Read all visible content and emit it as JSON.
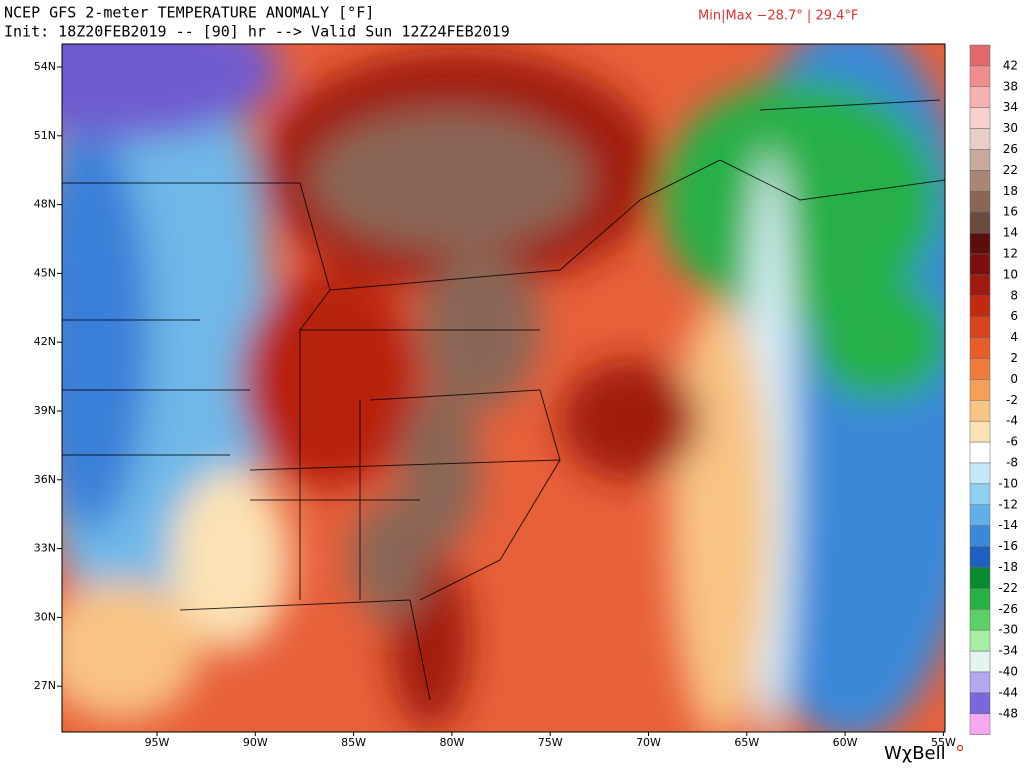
{
  "header": {
    "title": "NCEP GFS 2-meter TEMPERATURE ANOMALY [°F]",
    "subtitle": "Init: 18Z20FEB2019 -- [90] hr --> Valid Sun 12Z24FEB2019",
    "minmax": "Min|Max −28.7° | 29.4°F"
  },
  "map": {
    "lat_labels": [
      "54N",
      "51N",
      "48N",
      "45N",
      "42N",
      "39N",
      "36N",
      "33N",
      "30N",
      "27N"
    ],
    "lon_labels": [
      "95W",
      "90W",
      "85W",
      "80W",
      "75W",
      "70W",
      "65W",
      "60W",
      "55W"
    ]
  },
  "colorbar": {
    "labels": [
      "42",
      "38",
      "34",
      "30",
      "26",
      "22",
      "18",
      "16",
      "14",
      "12",
      "10",
      "8",
      "6",
      "4",
      "2",
      "0",
      "-2",
      "-4",
      "-6",
      "-8",
      "-10",
      "-12",
      "-14",
      "-16",
      "-18",
      "-22",
      "-26",
      "-30",
      "-34",
      "-40",
      "-44",
      "-48"
    ],
    "colors": [
      "#e06a6a",
      "#f08e8e",
      "#f5b2b0",
      "#f8d2cc",
      "#e6d0c6",
      "#c8aa9c",
      "#a88676",
      "#8a6656",
      "#6a4a3e",
      "#5a0e0e",
      "#7c0e0e",
      "#a01a10",
      "#c02a12",
      "#d8421c",
      "#e85c28",
      "#f07c3c",
      "#f5a05a",
      "#f8c484",
      "#fbe2b4",
      "#ffffff",
      "#c2e8f8",
      "#90d0f0",
      "#60b0e8",
      "#3a88d8",
      "#1e60c0",
      "#0a8a30",
      "#26b046",
      "#5ad066",
      "#a6eea2",
      "#e4f4f0",
      "#b2a8f0",
      "#7868dc",
      "#f8a8f0"
    ]
  },
  "logo": "WχBell"
}
